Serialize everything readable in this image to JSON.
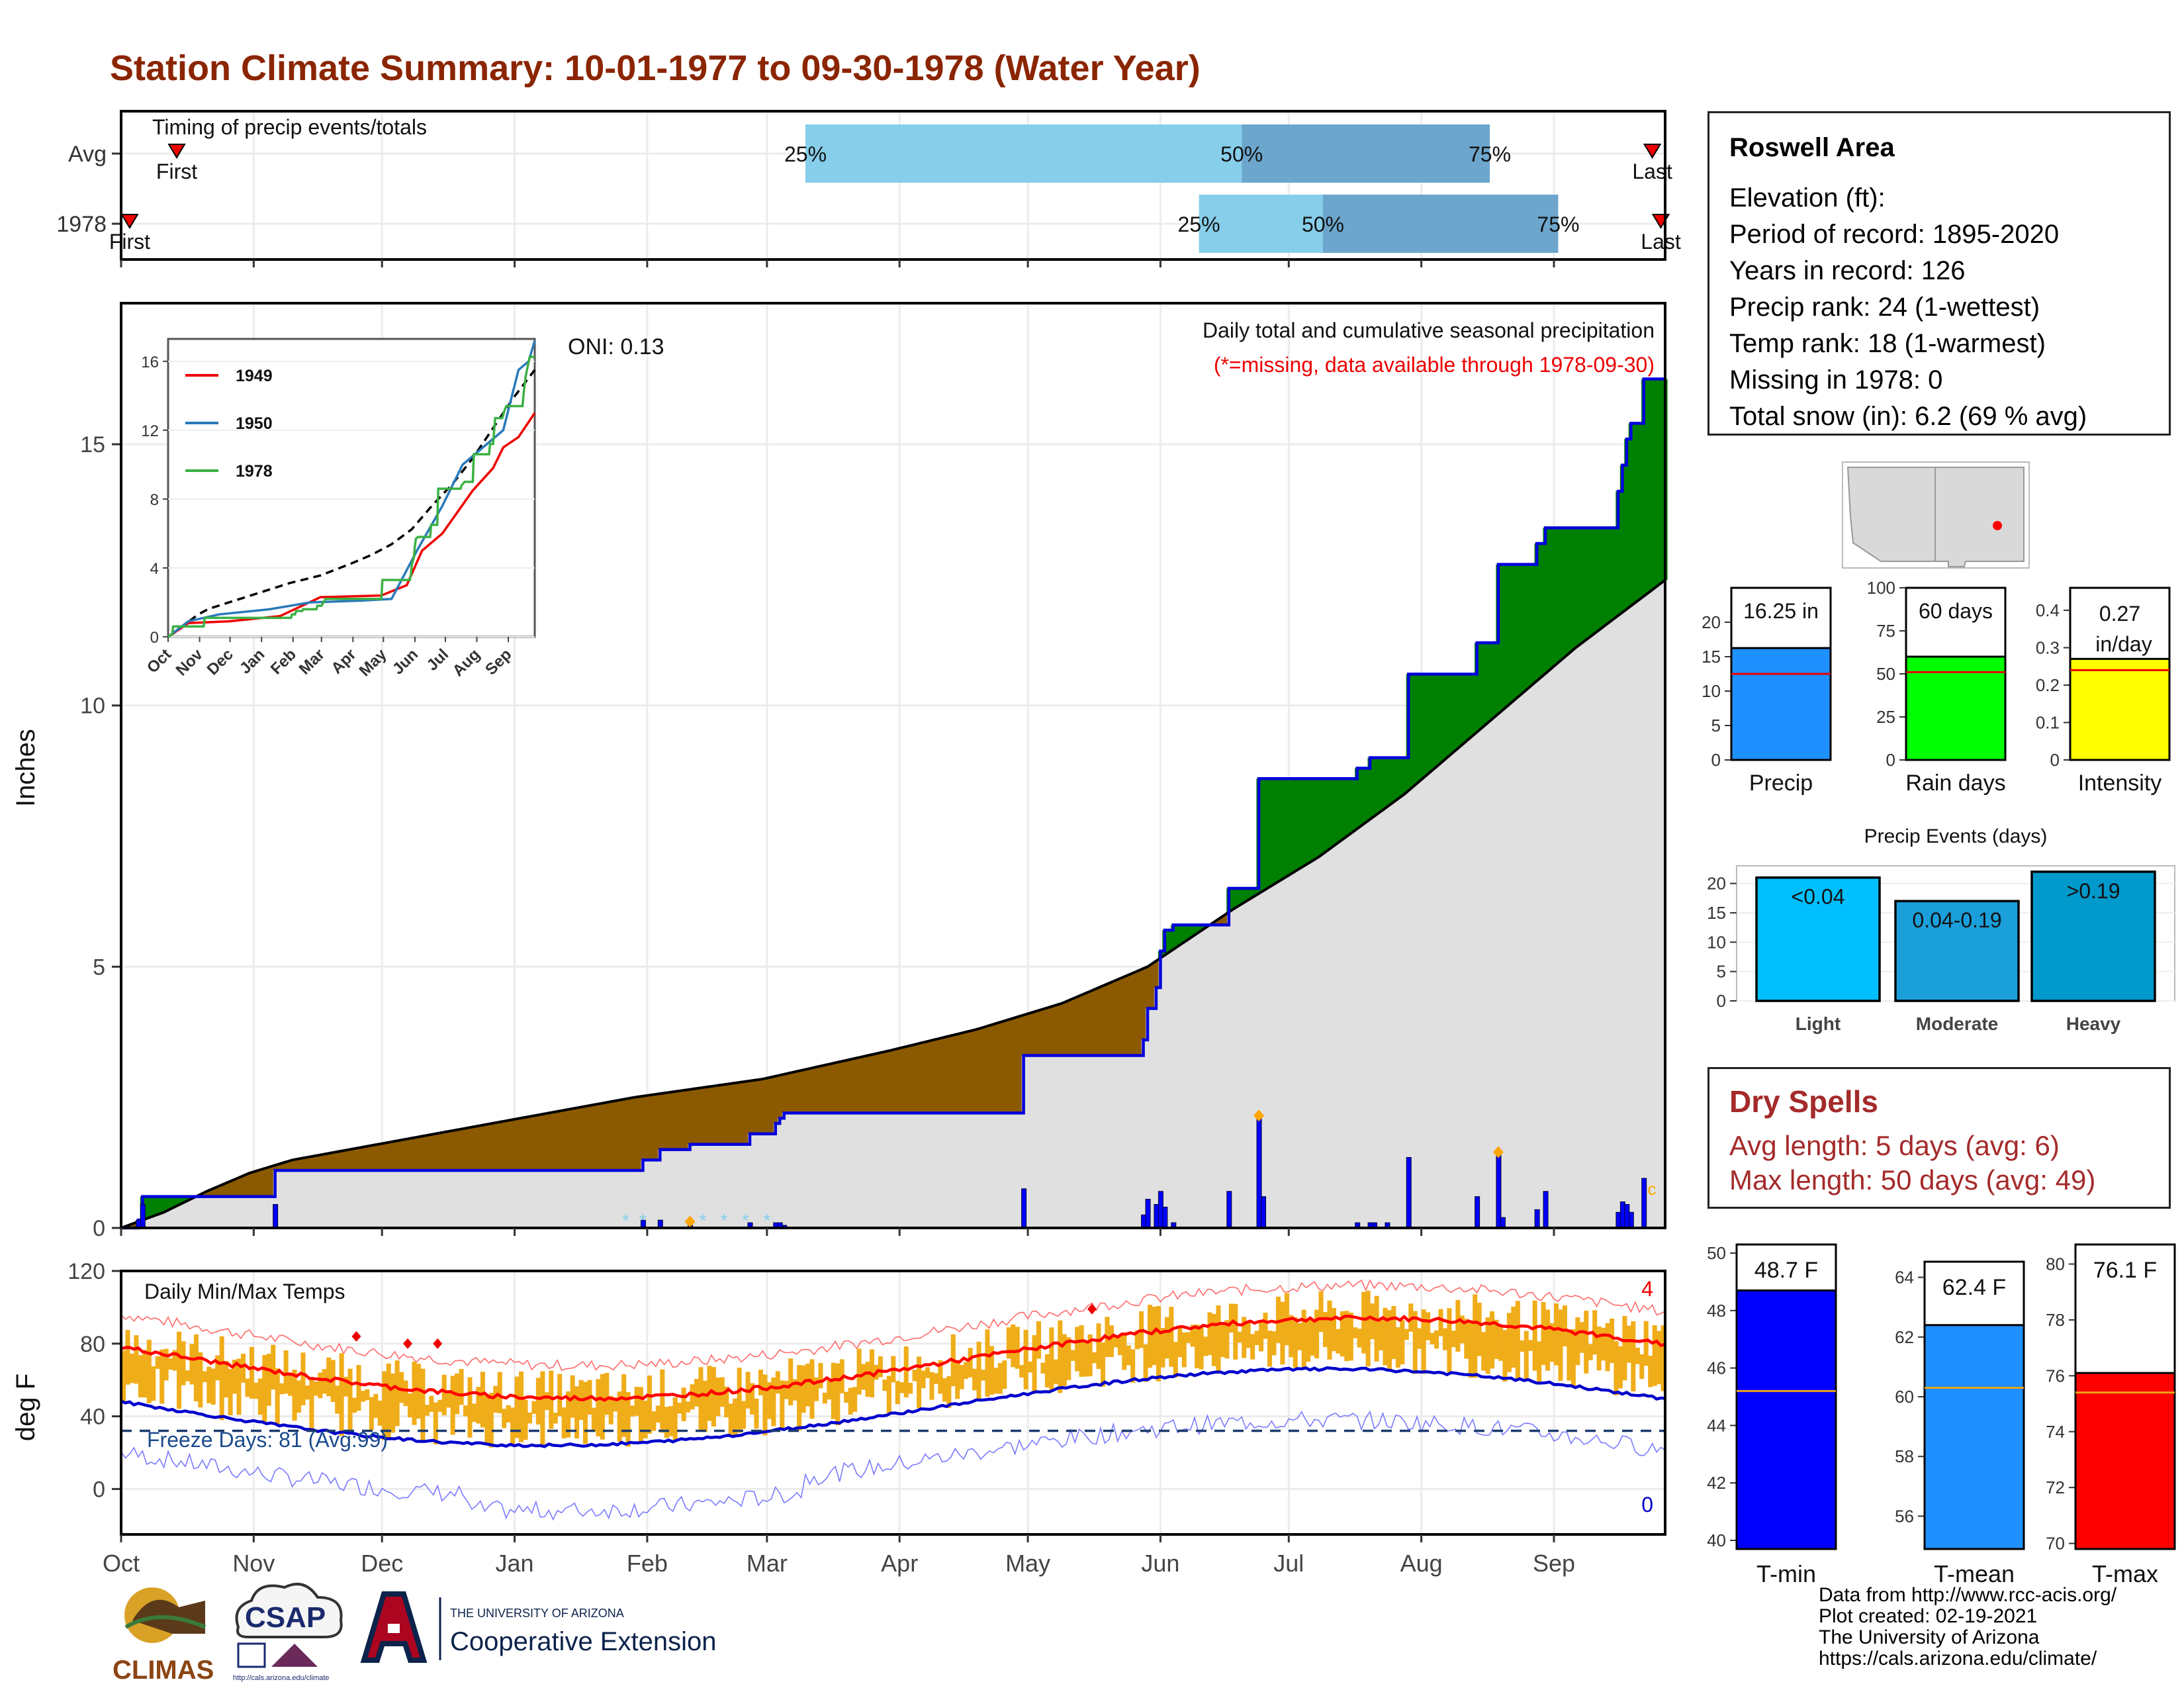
{
  "title": "Station Climate Summary: 10-01-1977 to 09-30-1978 (Water Year)",
  "colors": {
    "title": "#8b2500",
    "avg_area": "#e0e0e0",
    "above_avg": "#008000",
    "below_avg": "#8b5a00",
    "cum_line": "#0000dd",
    "precip_bar_color": "#1f90ff",
    "rain_days_bar": "#00ff00",
    "intensity_bar": "#ffff00",
    "light": "#00bfff",
    "moderate": "#1a9fdb",
    "heavy": "#0099cc",
    "tmax_band": "#f0ad1a",
    "red_line": "#ff0000",
    "blue_line": "#0000cc"
  },
  "timing": {
    "title": "Timing of precip events/totals",
    "rows": [
      {
        "label": "Avg",
        "first_label": "First",
        "last_label": "Last",
        "first_day": 13,
        "last_day": 358,
        "p25": 160,
        "p50": 262,
        "p75": 320,
        "p25_label": "25%",
        "p50_label": "50%",
        "p75_label": "75%"
      },
      {
        "label": "1978",
        "first_label": "First",
        "last_label": "Last",
        "first_day": 2,
        "last_day": 360,
        "p25": 252,
        "p50": 281,
        "p75": 336,
        "p25_label": "25%",
        "p50_label": "50%",
        "p75_label": "75%"
      }
    ]
  },
  "precip_panel": {
    "ylabel": "Inches",
    "oni": "ONI: 0.13",
    "title": "Daily total and cumulative seasonal precipitation",
    "subtitle": "(*=missing, data available through 1978-09-30)",
    "yticks": [
      0,
      5,
      10,
      15
    ],
    "ylim": [
      0,
      17.7
    ]
  },
  "inset": {
    "yticks": [
      0,
      4,
      8,
      12,
      16
    ],
    "months": [
      "Oct",
      "Nov",
      "Dec",
      "Jan",
      "Feb",
      "Mar",
      "Apr",
      "May",
      "Jun",
      "Jul",
      "Aug",
      "Sep"
    ],
    "legend": [
      "1949",
      "1950",
      "1978"
    ]
  },
  "temp_panel": {
    "ylabel": "deg F",
    "title": "Daily Min/Max Temps",
    "freeze": "Freeze Days: 81 (Avg:99)",
    "yticks": [
      0,
      40,
      80,
      120
    ],
    "ylim": [
      -25,
      120
    ],
    "count_high": "4",
    "count_low": "0",
    "months": [
      "Oct",
      "Nov",
      "Dec",
      "Jan",
      "Feb",
      "Mar",
      "Apr",
      "May",
      "Jun",
      "Jul",
      "Aug",
      "Sep"
    ]
  },
  "station": {
    "name": "Roswell Area",
    "lines": [
      "Elevation (ft):",
      "Period of record: 1895-2020",
      "Years in record: 126",
      "Precip rank: 24 (1-wettest)",
      "Temp rank: 18 (1-warmest)",
      "Missing in 1978: 0",
      "Total snow (in): 6.2 (69 % avg)"
    ]
  },
  "mini_bars": [
    {
      "label": "Precip",
      "value_label": "16.25 in",
      "value": 16.25,
      "avg": 12.5,
      "yticks": [
        0,
        5,
        10,
        15,
        20
      ],
      "ymax": 25,
      "color": "#1f90ff"
    },
    {
      "label": "Rain days",
      "value_label": "60 days",
      "value": 60,
      "avg": 51,
      "yticks": [
        0,
        25,
        50,
        75,
        100
      ],
      "ymax": 100,
      "color": "#00ff00"
    },
    {
      "label": "Intensity",
      "value_label": "0.27 in/day",
      "value_label_1": "0.27",
      "value_label_2": "in/day",
      "value": 0.27,
      "avg": 0.24,
      "yticks": [
        0.0,
        0.1,
        0.2,
        0.3,
        0.4
      ],
      "ymax": 0.46,
      "color": "#ffff00"
    }
  ],
  "events": {
    "title": "Precip Events (days)",
    "yticks": [
      0,
      5,
      10,
      15,
      20
    ],
    "bars": [
      {
        "label": "Light",
        "value_label": "<0.04",
        "value": 21
      },
      {
        "label": "Moderate",
        "value_label": "0.04-0.19",
        "value": 17
      },
      {
        "label": "Heavy",
        "value_label": ">0.19",
        "value": 22
      }
    ]
  },
  "dry_spells": {
    "title": "Dry Spells",
    "avg_length": "Avg length: 5 days (avg: 6)",
    "max_length": "Max length: 50 days (avg: 49)"
  },
  "temp_bars": [
    {
      "label": "T-min",
      "value_label": "48.7 F",
      "value": 48.7,
      "avg": 45.2,
      "yticks": [
        40,
        42,
        44,
        46,
        48,
        50
      ],
      "ylim": [
        39.7,
        50.3
      ],
      "color": "#0000ff"
    },
    {
      "label": "T-mean",
      "value_label": "62.4 F",
      "value": 62.4,
      "avg": 60.3,
      "yticks": [
        56,
        58,
        60,
        62,
        64
      ],
      "ylim": [
        54.9,
        65.1
      ],
      "color": "#1f90ff"
    },
    {
      "label": "T-max",
      "value_label": "76.1 F",
      "value": 76.1,
      "avg": 75.4,
      "yticks": [
        70,
        72,
        74,
        76,
        78,
        80
      ],
      "ylim": [
        69.8,
        80.7
      ],
      "color": "#ff0000"
    }
  ],
  "credits": [
    "Data from http://www.rcc-acis.org/",
    "Plot created: 02-19-2021",
    "The University of Arizona",
    "https://cals.arizona.edu/climate/"
  ],
  "logos": {
    "climas": "CLIMAS",
    "csap": "CSAP",
    "csap_url": "http://cals.arizona.edu/climate",
    "ua_line1": "THE UNIVERSITY OF ARIZONA",
    "ua_line2": "Cooperative Extension"
  },
  "chart_data": {
    "type": "area",
    "title": "Daily total and cumulative seasonal precipitation",
    "ylabel": "Inches",
    "ylim": [
      0,
      17.7
    ],
    "x_unit": "day of water year (Oct 1 = 0)",
    "cumulative_1978": [
      [
        0,
        0.0
      ],
      [
        4,
        0.15
      ],
      [
        5,
        0.6
      ],
      [
        35,
        0.6
      ],
      [
        36,
        1.1
      ],
      [
        121,
        1.1
      ],
      [
        122,
        1.3
      ],
      [
        125,
        1.3
      ],
      [
        126,
        1.5
      ],
      [
        132,
        1.5
      ],
      [
        133,
        1.6
      ],
      [
        146,
        1.6
      ],
      [
        147,
        1.8
      ],
      [
        151,
        1.8
      ],
      [
        153,
        2.0
      ],
      [
        154,
        2.1
      ],
      [
        155,
        2.2
      ],
      [
        210,
        2.2
      ],
      [
        211,
        3.3
      ],
      [
        238,
        3.3
      ],
      [
        239,
        3.6
      ],
      [
        240,
        4.2
      ],
      [
        242,
        4.6
      ],
      [
        243,
        5.3
      ],
      [
        244,
        5.7
      ],
      [
        246,
        5.8
      ],
      [
        258,
        5.8
      ],
      [
        259,
        6.5
      ],
      [
        265,
        6.5
      ],
      [
        266,
        8.6
      ],
      [
        288,
        8.6
      ],
      [
        289,
        8.8
      ],
      [
        292,
        9.0
      ],
      [
        300,
        9.0
      ],
      [
        301,
        10.6
      ],
      [
        316,
        10.6
      ],
      [
        317,
        11.2
      ],
      [
        320,
        11.2
      ],
      [
        322,
        12.7
      ],
      [
        329,
        12.7
      ],
      [
        331,
        13.1
      ],
      [
        333,
        13.4
      ],
      [
        349,
        13.4
      ],
      [
        350,
        14.1
      ],
      [
        351,
        14.6
      ],
      [
        352,
        15.1
      ],
      [
        353,
        15.4
      ],
      [
        356,
        16.25
      ],
      [
        361,
        16.25
      ]
    ],
    "cumulative_avg": [
      [
        0,
        0.0
      ],
      [
        10,
        0.3
      ],
      [
        20,
        0.7
      ],
      [
        30,
        1.05
      ],
      [
        40,
        1.3
      ],
      [
        60,
        1.6
      ],
      [
        90,
        2.05
      ],
      [
        120,
        2.5
      ],
      [
        150,
        2.85
      ],
      [
        180,
        3.4
      ],
      [
        200,
        3.8
      ],
      [
        220,
        4.3
      ],
      [
        240,
        5.0
      ],
      [
        260,
        6.1
      ],
      [
        280,
        7.1
      ],
      [
        300,
        8.3
      ],
      [
        320,
        9.7
      ],
      [
        340,
        11.1
      ],
      [
        361,
        12.4
      ]
    ],
    "daily_bars": [
      [
        4,
        0.15
      ],
      [
        5,
        0.45
      ],
      [
        36,
        0.45
      ],
      [
        122,
        0.15
      ],
      [
        126,
        0.15
      ],
      [
        133,
        0.05
      ],
      [
        147,
        0.1
      ],
      [
        153,
        0.1
      ],
      [
        154,
        0.1
      ],
      [
        155,
        0.05
      ],
      [
        211,
        0.75
      ],
      [
        239,
        0.25
      ],
      [
        240,
        0.55
      ],
      [
        242,
        0.45
      ],
      [
        243,
        0.7
      ],
      [
        244,
        0.4
      ],
      [
        246,
        0.1
      ],
      [
        259,
        0.7
      ],
      [
        266,
        2.15
      ],
      [
        267,
        0.6
      ],
      [
        289,
        0.1
      ],
      [
        292,
        0.1
      ],
      [
        293,
        0.1
      ],
      [
        296,
        0.1
      ],
      [
        301,
        1.35
      ],
      [
        317,
        0.6
      ],
      [
        322,
        1.45
      ],
      [
        323,
        0.2
      ],
      [
        331,
        0.35
      ],
      [
        333,
        0.7
      ],
      [
        350,
        0.3
      ],
      [
        351,
        0.5
      ],
      [
        352,
        0.45
      ],
      [
        353,
        0.3
      ],
      [
        356,
        0.95
      ]
    ],
    "temps_rough": {
      "tmax_mean_start": 82,
      "tmax_mean_min": 52,
      "tmax_mean_peak": 95,
      "tmin_mean_start": 53,
      "tmin_mean_min": 24,
      "tmin_mean_peak": 66,
      "freeze_line": 32
    }
  }
}
